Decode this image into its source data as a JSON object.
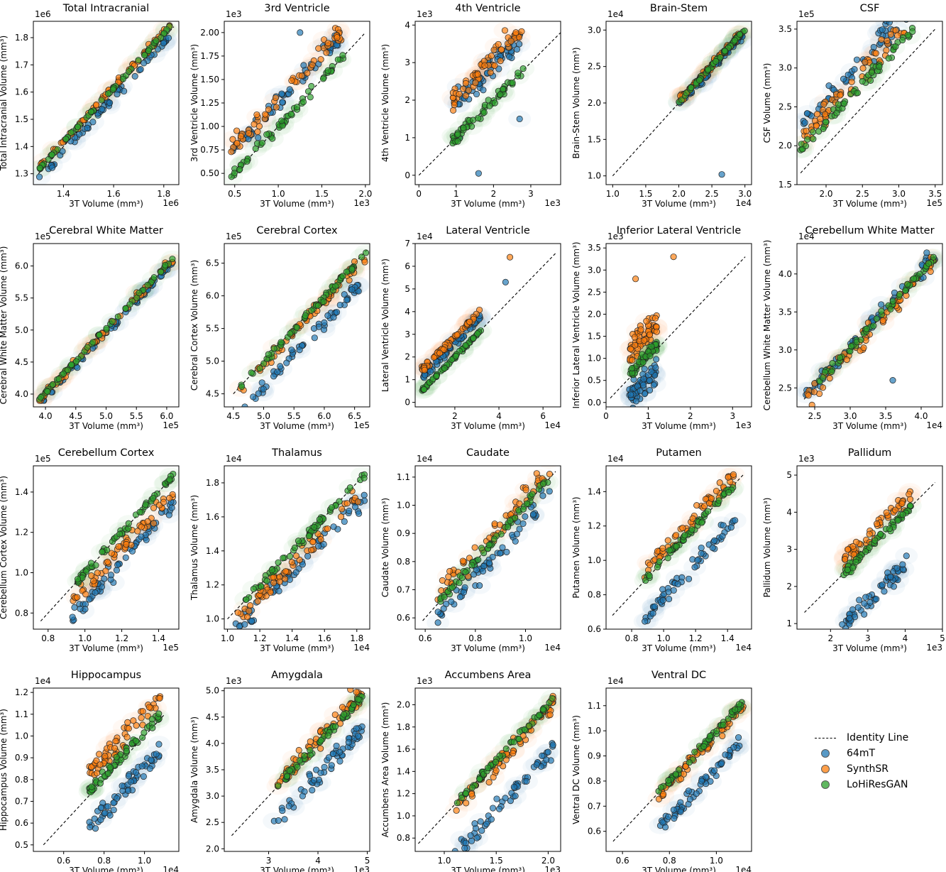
{
  "figure": {
    "x_label": "3T Volume (mm³)",
    "legend": {
      "identity_label": "Identity Line",
      "series": [
        {
          "name": "64mT",
          "color": "#1f77b4"
        },
        {
          "name": "SynthSR",
          "color": "#ff7f0e"
        },
        {
          "name": "LoHiResGAN",
          "color": "#2ca02c"
        }
      ]
    }
  },
  "chart_data": [
    {
      "type": "scatter",
      "title": "Total Intracranial",
      "ylabel": "Total Intracranial Volume (mm³)",
      "xlabel": "3T Volume (mm³)",
      "x_exp": "1e6",
      "y_exp": "1e6",
      "xlim": [
        1.28,
        1.86
      ],
      "ylim": [
        1.26,
        1.86
      ],
      "xticks": [
        1.4,
        1.6,
        1.8
      ],
      "yticks": [
        1.3,
        1.4,
        1.5,
        1.6,
        1.7,
        1.8
      ],
      "tick_labels_x": [
        "1.4",
        "1.6",
        "1.8"
      ],
      "tick_labels_y": [
        "1.3",
        "1.4",
        "1.5",
        "1.6",
        "1.7",
        "1.8"
      ],
      "identity": [
        1.3,
        1.84
      ],
      "x_range": [
        1.3,
        1.83
      ],
      "offsets": {
        "64mT": -0.02,
        "SynthSR": 0.02,
        "LoHiResGAN": 0.015
      },
      "spread": 0.012,
      "outliers": []
    },
    {
      "type": "scatter",
      "title": "3rd Ventricle",
      "ylabel": "3rd Ventricle Volume (mm³)",
      "xlabel": "3T Volume (mm³)",
      "x_exp": "1e3",
      "y_exp": "1e3",
      "xlim": [
        0.38,
        2.05
      ],
      "ylim": [
        0.38,
        2.12
      ],
      "xticks": [
        0.5,
        1.0,
        1.5,
        2.0
      ],
      "yticks": [
        0.5,
        0.75,
        1.0,
        1.25,
        1.5,
        1.75,
        2.0
      ],
      "tick_labels_x": [
        "0.5",
        "1.0",
        "1.5",
        "2.0"
      ],
      "tick_labels_y": [
        "0.50",
        "0.75",
        "1.00",
        "1.25",
        "1.50",
        "1.75",
        "2.00"
      ],
      "identity": [
        0.45,
        2.0
      ],
      "x_range": [
        0.45,
        1.75
      ],
      "offsets": {
        "64mT": 0.25,
        "SynthSR": 0.3,
        "LoHiResGAN": 0.0
      },
      "spread": 0.1,
      "outliers": [
        [
          1.25,
          2.0,
          "64mT"
        ]
      ]
    },
    {
      "type": "scatter",
      "title": "4th Ventricle",
      "ylabel": "4th Ventricle Volume (mm³)",
      "xlabel": "3T Volume (mm³)",
      "x_exp": "1e3",
      "y_exp": "1e3",
      "xlim": [
        -0.1,
        3.8
      ],
      "ylim": [
        -0.25,
        4.1
      ],
      "xticks": [
        0,
        1,
        2,
        3
      ],
      "yticks": [
        0,
        1,
        2,
        3,
        4
      ],
      "tick_labels_x": [
        "0",
        "1",
        "2",
        "3"
      ],
      "tick_labels_y": [
        "0",
        "1",
        "2",
        "3",
        "4"
      ],
      "identity": [
        0.0,
        3.8
      ],
      "x_range": [
        0.9,
        2.8
      ],
      "offsets": {
        "64mT": 0.9,
        "SynthSR": 1.1,
        "LoHiResGAN": 0.0
      },
      "spread": 0.35,
      "outliers": [
        [
          1.6,
          0.05,
          "64mT"
        ],
        [
          1.1,
          1.0,
          "64mT"
        ],
        [
          2.7,
          1.5,
          "64mT"
        ],
        [
          2.6,
          3.8,
          "SynthSR"
        ]
      ]
    },
    {
      "type": "scatter",
      "title": "Brain-Stem",
      "ylabel": "Brain-Stem Volume (mm³)",
      "xlabel": "3T Volume (mm³)",
      "x_exp": "1e4",
      "y_exp": "1e4",
      "xlim": [
        0.9,
        3.1
      ],
      "ylim": [
        0.88,
        3.12
      ],
      "xticks": [
        1.0,
        1.5,
        2.0,
        2.5,
        3.0
      ],
      "yticks": [
        1.0,
        1.5,
        2.0,
        2.5,
        3.0
      ],
      "tick_labels_x": [
        "1.0",
        "1.5",
        "2.0",
        "2.5",
        "3.0"
      ],
      "tick_labels_y": [
        "1.0",
        "1.5",
        "2.0",
        "2.5",
        "3.0"
      ],
      "identity": [
        1.0,
        3.0
      ],
      "x_range": [
        2.0,
        3.0
      ],
      "offsets": {
        "64mT": -0.03,
        "SynthSR": 0.02,
        "LoHiResGAN": 0.01
      },
      "spread": 0.05,
      "outliers": [
        [
          2.65,
          1.02,
          "64mT"
        ]
      ]
    },
    {
      "type": "scatter",
      "title": "CSF",
      "ylabel": "CSF Volume (mm³)",
      "xlabel": "3T Volume (mm³)",
      "x_exp": "1e5",
      "y_exp": "1e5",
      "xlim": [
        1.6,
        3.6
      ],
      "ylim": [
        1.5,
        3.6
      ],
      "xticks": [
        2.0,
        2.5,
        3.0,
        3.5
      ],
      "yticks": [
        1.5,
        2.0,
        2.5,
        3.0,
        3.5
      ],
      "tick_labels_x": [
        "2.0",
        "2.5",
        "3.0",
        "3.5"
      ],
      "tick_labels_y": [
        "1.5",
        "2.0",
        "2.5",
        "3.0",
        "3.5"
      ],
      "identity": [
        1.65,
        3.5
      ],
      "x_range": [
        1.65,
        3.2
      ],
      "offsets": {
        "64mT": 0.6,
        "SynthSR": 0.45,
        "LoHiResGAN": 0.3
      },
      "spread": 0.15,
      "outliers": []
    },
    {
      "type": "scatter",
      "title": "Cerebral White Matter",
      "ylabel": "Cerebral White Matter Volume (mm³)",
      "xlabel": "3T Volume (mm³)",
      "x_exp": "1e5",
      "y_exp": "1e5",
      "xlim": [
        3.8,
        6.2
      ],
      "ylim": [
        3.8,
        6.35
      ],
      "xticks": [
        4.0,
        4.5,
        5.0,
        5.5,
        6.0
      ],
      "yticks": [
        4.0,
        4.5,
        5.0,
        5.5,
        6.0
      ],
      "tick_labels_x": [
        "4.0",
        "4.5",
        "5.0",
        "5.5",
        "6.0"
      ],
      "tick_labels_y": [
        "4.0",
        "4.5",
        "5.0",
        "5.5",
        "6.0"
      ],
      "identity": [
        3.9,
        6.1
      ],
      "x_range": [
        3.9,
        6.1
      ],
      "offsets": {
        "64mT": -0.05,
        "SynthSR": 0.0,
        "LoHiResGAN": 0.02
      },
      "spread": 0.06,
      "outliers": []
    },
    {
      "type": "scatter",
      "title": "Cerebral Cortex",
      "ylabel": "Cerebral Cortex Volume (mm³)",
      "xlabel": "3T Volume (mm³)",
      "x_exp": "1e5",
      "y_exp": "1e5",
      "xlim": [
        4.35,
        6.75
      ],
      "ylim": [
        4.3,
        6.8
      ],
      "xticks": [
        4.5,
        5.0,
        5.5,
        6.0,
        6.5
      ],
      "yticks": [
        4.5,
        5.0,
        5.5,
        6.0,
        6.5
      ],
      "tick_labels_x": [
        "4.5",
        "5.0",
        "5.5",
        "6.0",
        "6.5"
      ],
      "tick_labels_y": [
        "4.5",
        "5.0",
        "5.5",
        "6.0",
        "6.5"
      ],
      "identity": [
        4.5,
        6.7
      ],
      "x_range": [
        4.6,
        6.7
      ],
      "offsets": {
        "64mT": -0.4,
        "SynthSR": -0.05,
        "LoHiResGAN": -0.02
      },
      "spread": 0.1,
      "outliers": []
    },
    {
      "type": "scatter",
      "title": "Lateral Ventricle",
      "ylabel": "Lateral Ventricle Volume (mm³)",
      "xlabel": "3T Volume (mm³)",
      "x_exp": "1e4",
      "y_exp": "1e4",
      "xlim": [
        0.2,
        6.8
      ],
      "ylim": [
        -0.2,
        7.0
      ],
      "xticks": [
        2,
        4,
        6
      ],
      "yticks": [
        0,
        1,
        2,
        3,
        4,
        5,
        6,
        7
      ],
      "tick_labels_x": [
        "2",
        "4",
        "6"
      ],
      "tick_labels_y": [
        "0",
        "1",
        "2",
        "3",
        "4",
        "5",
        "6",
        "7"
      ],
      "identity": [
        0.5,
        6.6
      ],
      "x_range": [
        0.5,
        3.2
      ],
      "offsets": {
        "64mT": 0.6,
        "SynthSR": 0.9,
        "LoHiResGAN": 0.0
      },
      "spread": 0.15,
      "outliers": [
        [
          4.5,
          6.4,
          "SynthSR"
        ],
        [
          4.3,
          5.3,
          "64mT"
        ]
      ]
    },
    {
      "type": "scatter",
      "title": "Inferior Lateral Ventricle",
      "ylabel": "Inferior Lateral Ventricle Volume (mm³)",
      "xlabel": "3T Volume (mm³)",
      "x_exp": "1e3",
      "y_exp": "1e3",
      "xlim": [
        0.0,
        3.45
      ],
      "ylim": [
        -0.1,
        3.6
      ],
      "xticks": [
        0,
        1,
        2,
        3
      ],
      "yticks": [
        0.0,
        0.5,
        1.0,
        1.5,
        2.0,
        2.5,
        3.0,
        3.5
      ],
      "tick_labels_x": [
        "0",
        "1",
        "2",
        "3"
      ],
      "tick_labels_y": [
        "0.0",
        "0.5",
        "1.0",
        "1.5",
        "2.0",
        "2.5",
        "3.0",
        "3.5"
      ],
      "identity": [
        0.1,
        3.3
      ],
      "x_range": [
        0.55,
        1.2
      ],
      "offsets": {
        "64mT": -0.45,
        "SynthSR": 0.6,
        "LoHiResGAN": 0.1
      },
      "spread": 0.3,
      "outliers": [
        [
          1.6,
          3.3,
          "SynthSR"
        ],
        [
          0.7,
          2.8,
          "SynthSR"
        ]
      ]
    },
    {
      "type": "scatter",
      "title": "Cerebellum White Matter",
      "ylabel": "Cerebellum White Matter Volume (mm³)",
      "xlabel": "3T Volume (mm³)",
      "x_exp": "1e4",
      "y_exp": "1e4",
      "xlim": [
        2.25,
        4.3
      ],
      "ylim": [
        2.25,
        4.4
      ],
      "xticks": [
        2.5,
        3.0,
        3.5,
        4.0
      ],
      "yticks": [
        2.5,
        3.0,
        3.5,
        4.0
      ],
      "tick_labels_x": [
        "2.5",
        "3.0",
        "3.5",
        "4.0"
      ],
      "tick_labels_y": [
        "2.5",
        "3.0",
        "3.5",
        "4.0"
      ],
      "identity": [
        2.35,
        4.2
      ],
      "x_range": [
        2.35,
        4.2
      ],
      "offsets": {
        "64mT": 0.05,
        "SynthSR": -0.02,
        "LoHiResGAN": 0.02
      },
      "spread": 0.12,
      "outliers": [
        [
          3.6,
          2.6,
          "64mT"
        ]
      ]
    },
    {
      "type": "scatter",
      "title": "Cerebellum Cortex",
      "ylabel": "Cerebellum Cortex Volume (mm³)",
      "xlabel": "3T Volume (mm³)",
      "x_exp": "1e5",
      "y_exp": "1e5",
      "xlim": [
        0.72,
        1.51
      ],
      "ylim": [
        0.72,
        1.53
      ],
      "xticks": [
        0.8,
        1.0,
        1.2,
        1.4
      ],
      "yticks": [
        0.8,
        1.0,
        1.2,
        1.4
      ],
      "tick_labels_x": [
        "0.8",
        "1.0",
        "1.2",
        "1.4"
      ],
      "tick_labels_y": [
        "0.8",
        "1.0",
        "1.2",
        "1.4"
      ],
      "identity": [
        0.76,
        1.46
      ],
      "x_range": [
        0.93,
        1.48
      ],
      "offsets": {
        "64mT": -0.15,
        "SynthSR": -0.08,
        "LoHiResGAN": 0.0
      },
      "spread": 0.04,
      "outliers": []
    },
    {
      "type": "scatter",
      "title": "Thalamus",
      "ylabel": "Thalamus Volume (mm³)",
      "xlabel": "3T Volume (mm³)",
      "x_exp": "1e4",
      "y_exp": "1e4",
      "xlim": [
        0.98,
        1.88
      ],
      "ylim": [
        0.94,
        1.9
      ],
      "xticks": [
        1.0,
        1.2,
        1.4,
        1.6,
        1.8
      ],
      "yticks": [
        1.0,
        1.2,
        1.4,
        1.6,
        1.8
      ],
      "tick_labels_x": [
        "1.0",
        "1.2",
        "1.4",
        "1.6",
        "1.8"
      ],
      "tick_labels_y": [
        "1.0",
        "1.2",
        "1.4",
        "1.6",
        "1.8"
      ],
      "identity": [
        1.0,
        1.85
      ],
      "x_range": [
        1.05,
        1.85
      ],
      "offsets": {
        "64mT": -0.12,
        "SynthSR": -0.08,
        "LoHiResGAN": 0.0
      },
      "spread": 0.06,
      "outliers": []
    },
    {
      "type": "scatter",
      "title": "Caudate",
      "ylabel": "Caudate Volume (mm³)",
      "xlabel": "3T Volume (mm³)",
      "x_exp": "1e4",
      "y_exp": "1e4",
      "xlim": [
        0.56,
        1.14
      ],
      "ylim": [
        0.56,
        1.14
      ],
      "xticks": [
        0.6,
        0.8,
        1.0
      ],
      "yticks": [
        0.6,
        0.7,
        0.8,
        0.9,
        1.0,
        1.1
      ],
      "tick_labels_x": [
        "0.6",
        "0.8",
        "1.0"
      ],
      "tick_labels_y": [
        "0.6",
        "0.7",
        "0.8",
        "0.9",
        "1.0",
        "1.1"
      ],
      "identity": [
        0.59,
        1.12
      ],
      "x_range": [
        0.65,
        1.1
      ],
      "offsets": {
        "64mT": -0.05,
        "SynthSR": 0.03,
        "LoHiResGAN": 0.0
      },
      "spread": 0.04,
      "outliers": []
    },
    {
      "type": "scatter",
      "title": "Putamen",
      "ylabel": "Putamen Volume (mm³)",
      "xlabel": "3T Volume (mm³)",
      "x_exp": "1e4",
      "y_exp": "1e4",
      "xlim": [
        0.64,
        1.55
      ],
      "ylim": [
        0.6,
        1.55
      ],
      "xticks": [
        0.8,
        1.0,
        1.2,
        1.4
      ],
      "yticks": [
        0.6,
        0.8,
        1.0,
        1.2,
        1.4
      ],
      "tick_labels_x": [
        "0.8",
        "1.0",
        "1.2",
        "1.4"
      ],
      "tick_labels_y": [
        "0.6",
        "0.8",
        "1.0",
        "1.2",
        "1.4"
      ],
      "identity": [
        0.68,
        1.5
      ],
      "x_range": [
        0.88,
        1.45
      ],
      "offsets": {
        "64mT": -0.22,
        "SynthSR": 0.06,
        "LoHiResGAN": 0.0
      },
      "spread": 0.05,
      "outliers": []
    },
    {
      "type": "scatter",
      "title": "Pallidum",
      "ylabel": "Pallidum Volume (mm³)",
      "xlabel": "3T Volume (mm³)",
      "x_exp": "1e3",
      "y_exp": "1e3",
      "xlim": [
        1.1,
        5.0
      ],
      "ylim": [
        0.85,
        5.25
      ],
      "xticks": [
        2,
        3,
        4,
        5
      ],
      "yticks": [
        1,
        2,
        3,
        4,
        5
      ],
      "tick_labels_x": [
        "2",
        "3",
        "4",
        "5"
      ],
      "tick_labels_y": [
        "1",
        "2",
        "3",
        "4",
        "5"
      ],
      "identity": [
        1.3,
        4.8
      ],
      "x_range": [
        2.3,
        4.2
      ],
      "offsets": {
        "64mT": -1.4,
        "SynthSR": 0.35,
        "LoHiResGAN": 0.0
      },
      "spread": 0.25,
      "outliers": []
    },
    {
      "type": "scatter",
      "title": "Hippocampus",
      "ylabel": "Hippocampus Volume (mm³)",
      "xlabel": "3T Volume (mm³)",
      "x_exp": "1e4",
      "y_exp": "1e4",
      "xlim": [
        0.45,
        1.17
      ],
      "ylim": [
        0.47,
        1.22
      ],
      "xticks": [
        0.6,
        0.8,
        1.0
      ],
      "yticks": [
        0.5,
        0.6,
        0.7,
        0.8,
        0.9,
        1.0,
        1.1,
        1.2
      ],
      "tick_labels_x": [
        "0.6",
        "0.8",
        "1.0"
      ],
      "tick_labels_y": [
        "0.5",
        "0.6",
        "0.7",
        "0.8",
        "0.9",
        "1.0",
        "1.1",
        "1.2"
      ],
      "identity": [
        0.5,
        1.1
      ],
      "x_range": [
        0.72,
        1.08
      ],
      "offsets": {
        "64mT": -0.15,
        "SynthSR": 0.1,
        "LoHiResGAN": 0.02
      },
      "spread": 0.05,
      "outliers": []
    },
    {
      "type": "scatter",
      "title": "Amygdala",
      "ylabel": "Amygdala Volume (mm³)",
      "xlabel": "3T Volume (mm³)",
      "x_exp": "1e3",
      "y_exp": "1e3",
      "xlim": [
        2.1,
        5.05
      ],
      "ylim": [
        1.95,
        5.05
      ],
      "xticks": [
        3,
        4,
        5
      ],
      "yticks": [
        2.0,
        2.5,
        3.0,
        3.5,
        4.0,
        4.5,
        5.0
      ],
      "tick_labels_x": [
        "3",
        "4",
        "5"
      ],
      "tick_labels_y": [
        "2.0",
        "2.5",
        "3.0",
        "3.5",
        "4.0",
        "4.5",
        "5.0"
      ],
      "identity": [
        2.25,
        4.95
      ],
      "x_range": [
        3.1,
        4.9
      ],
      "offsets": {
        "64mT": -0.6,
        "SynthSR": 0.05,
        "LoHiResGAN": 0.0
      },
      "spread": 0.2,
      "outliers": []
    },
    {
      "type": "scatter",
      "title": "Accumbens Area",
      "ylabel": "Accumbens Area Volume (mm³)",
      "xlabel": "3T Volume (mm³)",
      "x_exp": "1e3",
      "y_exp": "1e3",
      "xlim": [
        0.72,
        2.12
      ],
      "ylim": [
        0.68,
        2.15
      ],
      "xticks": [
        1.0,
        1.5,
        2.0
      ],
      "yticks": [
        0.8,
        1.0,
        1.2,
        1.4,
        1.6,
        1.8,
        2.0
      ],
      "tick_labels_x": [
        "1.0",
        "1.5",
        "2.0"
      ],
      "tick_labels_y": [
        "0.8",
        "1.0",
        "1.2",
        "1.4",
        "1.6",
        "1.8",
        "2.0"
      ],
      "identity": [
        0.75,
        2.05
      ],
      "x_range": [
        1.1,
        2.05
      ],
      "offsets": {
        "64mT": -0.45,
        "SynthSR": -0.05,
        "LoHiResGAN": 0.0
      },
      "spread": 0.08,
      "outliers": []
    },
    {
      "type": "scatter",
      "title": "Ventral DC",
      "ylabel": "Ventral DC Volume (mm³)",
      "xlabel": "3T Volume (mm³)",
      "x_exp": "1e4",
      "y_exp": "1e4",
      "xlim": [
        0.53,
        1.15
      ],
      "ylim": [
        0.52,
        1.17
      ],
      "xticks": [
        0.6,
        0.8,
        1.0
      ],
      "yticks": [
        0.6,
        0.7,
        0.8,
        0.9,
        1.0,
        1.1
      ],
      "tick_labels_x": [
        "0.6",
        "0.8",
        "1.0"
      ],
      "tick_labels_y": [
        "0.6",
        "0.7",
        "0.8",
        "0.9",
        "1.0",
        "1.1"
      ],
      "identity": [
        0.56,
        1.12
      ],
      "x_range": [
        0.75,
        1.12
      ],
      "offsets": {
        "64mT": -0.15,
        "SynthSR": -0.02,
        "LoHiResGAN": 0.0
      },
      "spread": 0.03,
      "outliers": []
    }
  ]
}
